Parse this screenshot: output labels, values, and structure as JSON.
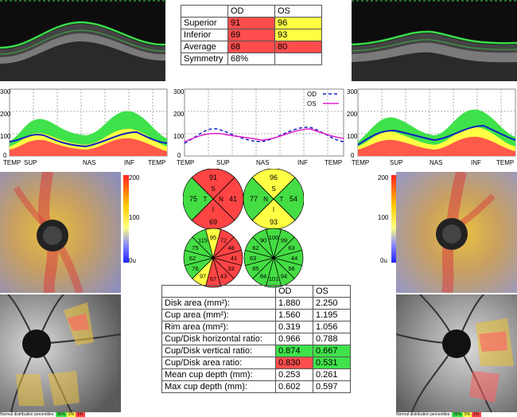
{
  "top_table": {
    "headers": [
      "",
      "OD",
      "OS"
    ],
    "rows": [
      {
        "label": "Superior",
        "od": "91",
        "os": "96",
        "od_status": "red",
        "os_status": "yellow"
      },
      {
        "label": "Inferior",
        "od": "69",
        "os": "93",
        "od_status": "red",
        "os_status": "yellow"
      },
      {
        "label": "Average",
        "od": "68",
        "os": "80",
        "od_status": "red",
        "os_status": "red"
      },
      {
        "label": "Symmetry",
        "od": "68%",
        "os": "",
        "od_status": "none",
        "os_status": "none"
      }
    ]
  },
  "tsnit_axis": {
    "y_ticks": [
      "300",
      "200",
      "100",
      "0"
    ],
    "x_ticks": [
      "TEMP",
      "SUP",
      "NAS",
      "INF",
      "TEMP"
    ]
  },
  "legend": {
    "od_label": "OD",
    "os_label": "OS"
  },
  "heatmap_scale": {
    "max": "200",
    "mid": "100",
    "min": "0u"
  },
  "quadrants": {
    "od": {
      "S": "91",
      "N": "41",
      "I": "69",
      "T": "75"
    },
    "os": {
      "S": "96",
      "N": "54",
      "I": "93",
      "T": "77"
    },
    "letters": {
      "s": "S",
      "t": "T",
      "n": "N",
      "i": "I"
    }
  },
  "clock_hours": {
    "od": [
      "95",
      "72",
      "48",
      "41",
      "33",
      "43",
      "67",
      "97",
      "76",
      "62",
      "75",
      "115"
    ],
    "os": [
      "100",
      "99",
      "63",
      "44",
      "56",
      "94",
      "101",
      "84",
      "85",
      "63",
      "62",
      "90"
    ]
  },
  "status_colors": {
    "red": "#ff4444",
    "yellow": "#ffff44",
    "green": "#44dd44"
  },
  "disc_table": {
    "headers": [
      "",
      "OD",
      "OS"
    ],
    "rows": [
      {
        "label": "Disk area (mm²):",
        "od": "1.880",
        "os": "2.250",
        "od_status": "none",
        "os_status": "none"
      },
      {
        "label": "Cup area (mm²):",
        "od": "1.560",
        "os": "1.195",
        "od_status": "none",
        "os_status": "none"
      },
      {
        "label": "Rim area (mm²):",
        "od": "0.319",
        "os": "1.056",
        "od_status": "none",
        "os_status": "none"
      },
      {
        "label": "Cup/Disk horizontal ratio:",
        "od": "0.966",
        "os": "0.788",
        "od_status": "none",
        "os_status": "none"
      },
      {
        "label": "Cup/Disk vertical ratio:",
        "od": "0.874",
        "os": "0.667",
        "od_status": "green",
        "os_status": "green"
      },
      {
        "label": "Cup/Disk area ratio:",
        "od": "0.830",
        "os": "0.531",
        "od_status": "red",
        "os_status": "green"
      },
      {
        "label": "Mean cup depth (mm):",
        "od": "0.253",
        "os": "0.261",
        "od_status": "none",
        "os_status": "none"
      },
      {
        "label": "Max cup depth (mm):",
        "od": "0.602",
        "os": "0.597",
        "od_status": "none",
        "os_status": "none"
      }
    ]
  },
  "footer": {
    "left": "Normal distribution percentiles:",
    "right": "Normal distribution percentiles:",
    "pct_labels": [
      "95%",
      "5%",
      "1%"
    ]
  }
}
